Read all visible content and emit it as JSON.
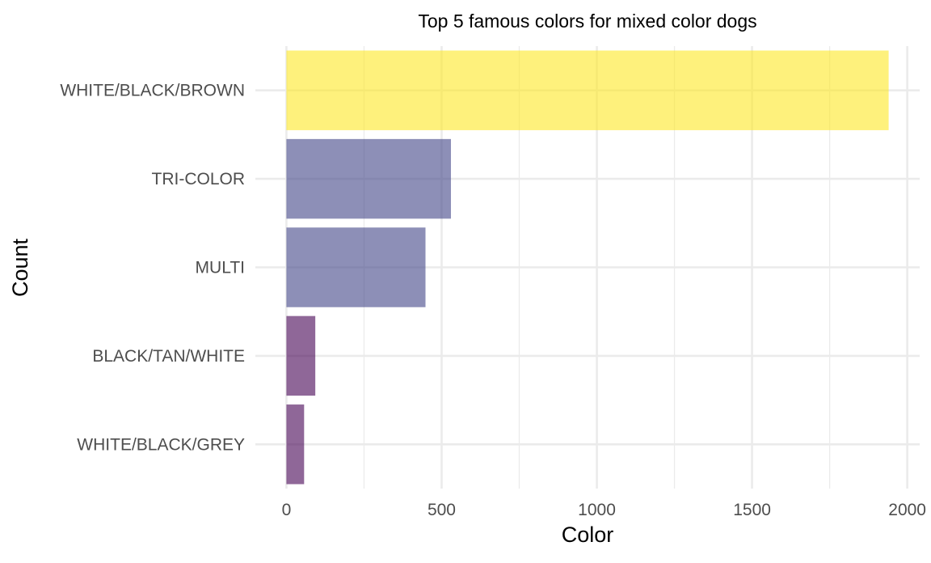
{
  "chart_data": {
    "type": "bar",
    "orientation": "horizontal",
    "title": "Top 5 famous colors for mixed color dogs",
    "xlabel": "Color",
    "ylabel": "Count",
    "categories": [
      "WHITE/BLACK/BROWN",
      "TRI-COLOR",
      "MULTI",
      "BLACK/TAN/WHITE",
      "WHITE/BLACK/GREY"
    ],
    "values": [
      1940,
      530,
      448,
      93,
      57
    ],
    "bar_colors": [
      "#FDE725",
      "#414487",
      "#414487",
      "#440154",
      "#440154"
    ],
    "bar_opacity": 0.6,
    "xlim": [
      -100,
      2040
    ],
    "xticks": [
      0,
      500,
      1000,
      1500,
      2000
    ],
    "xtick_labels": [
      "0",
      "500",
      "1000",
      "1500",
      "2000"
    ],
    "grid": true,
    "legend": "none"
  }
}
